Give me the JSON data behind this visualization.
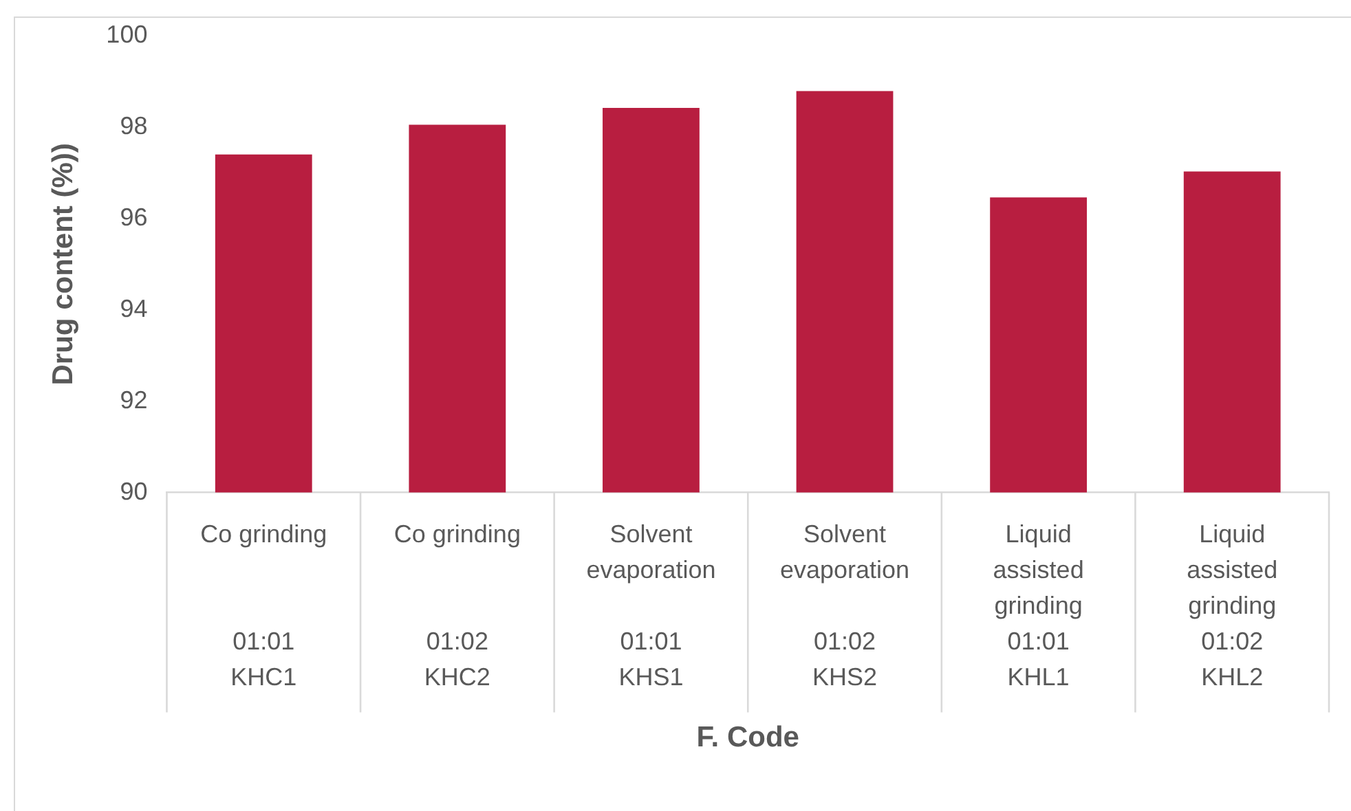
{
  "chart_data": {
    "type": "bar",
    "xlabel": "F. Code",
    "ylabel": "Drug content (%))",
    "categories": [
      "Co grinding\n01:01\nKHC1",
      "Co grinding\n01:02\nKHC2",
      "Solvent evaporation\n01:01\nKHS1",
      "Solvent evaporation\n01:02\nKHS2",
      "Liquid assisted grinding\n01:01\nKHL1",
      "Liquid assisted grinding\n01:02\nKHL2"
    ],
    "values": [
      97.4,
      98.05,
      98.42,
      98.79,
      96.46,
      97.03
    ],
    "color": "#b81e40",
    "ylim": [
      90,
      100
    ],
    "yticks": [
      90,
      92,
      94,
      96,
      98,
      100
    ],
    "grid": false,
    "legend": false
  }
}
